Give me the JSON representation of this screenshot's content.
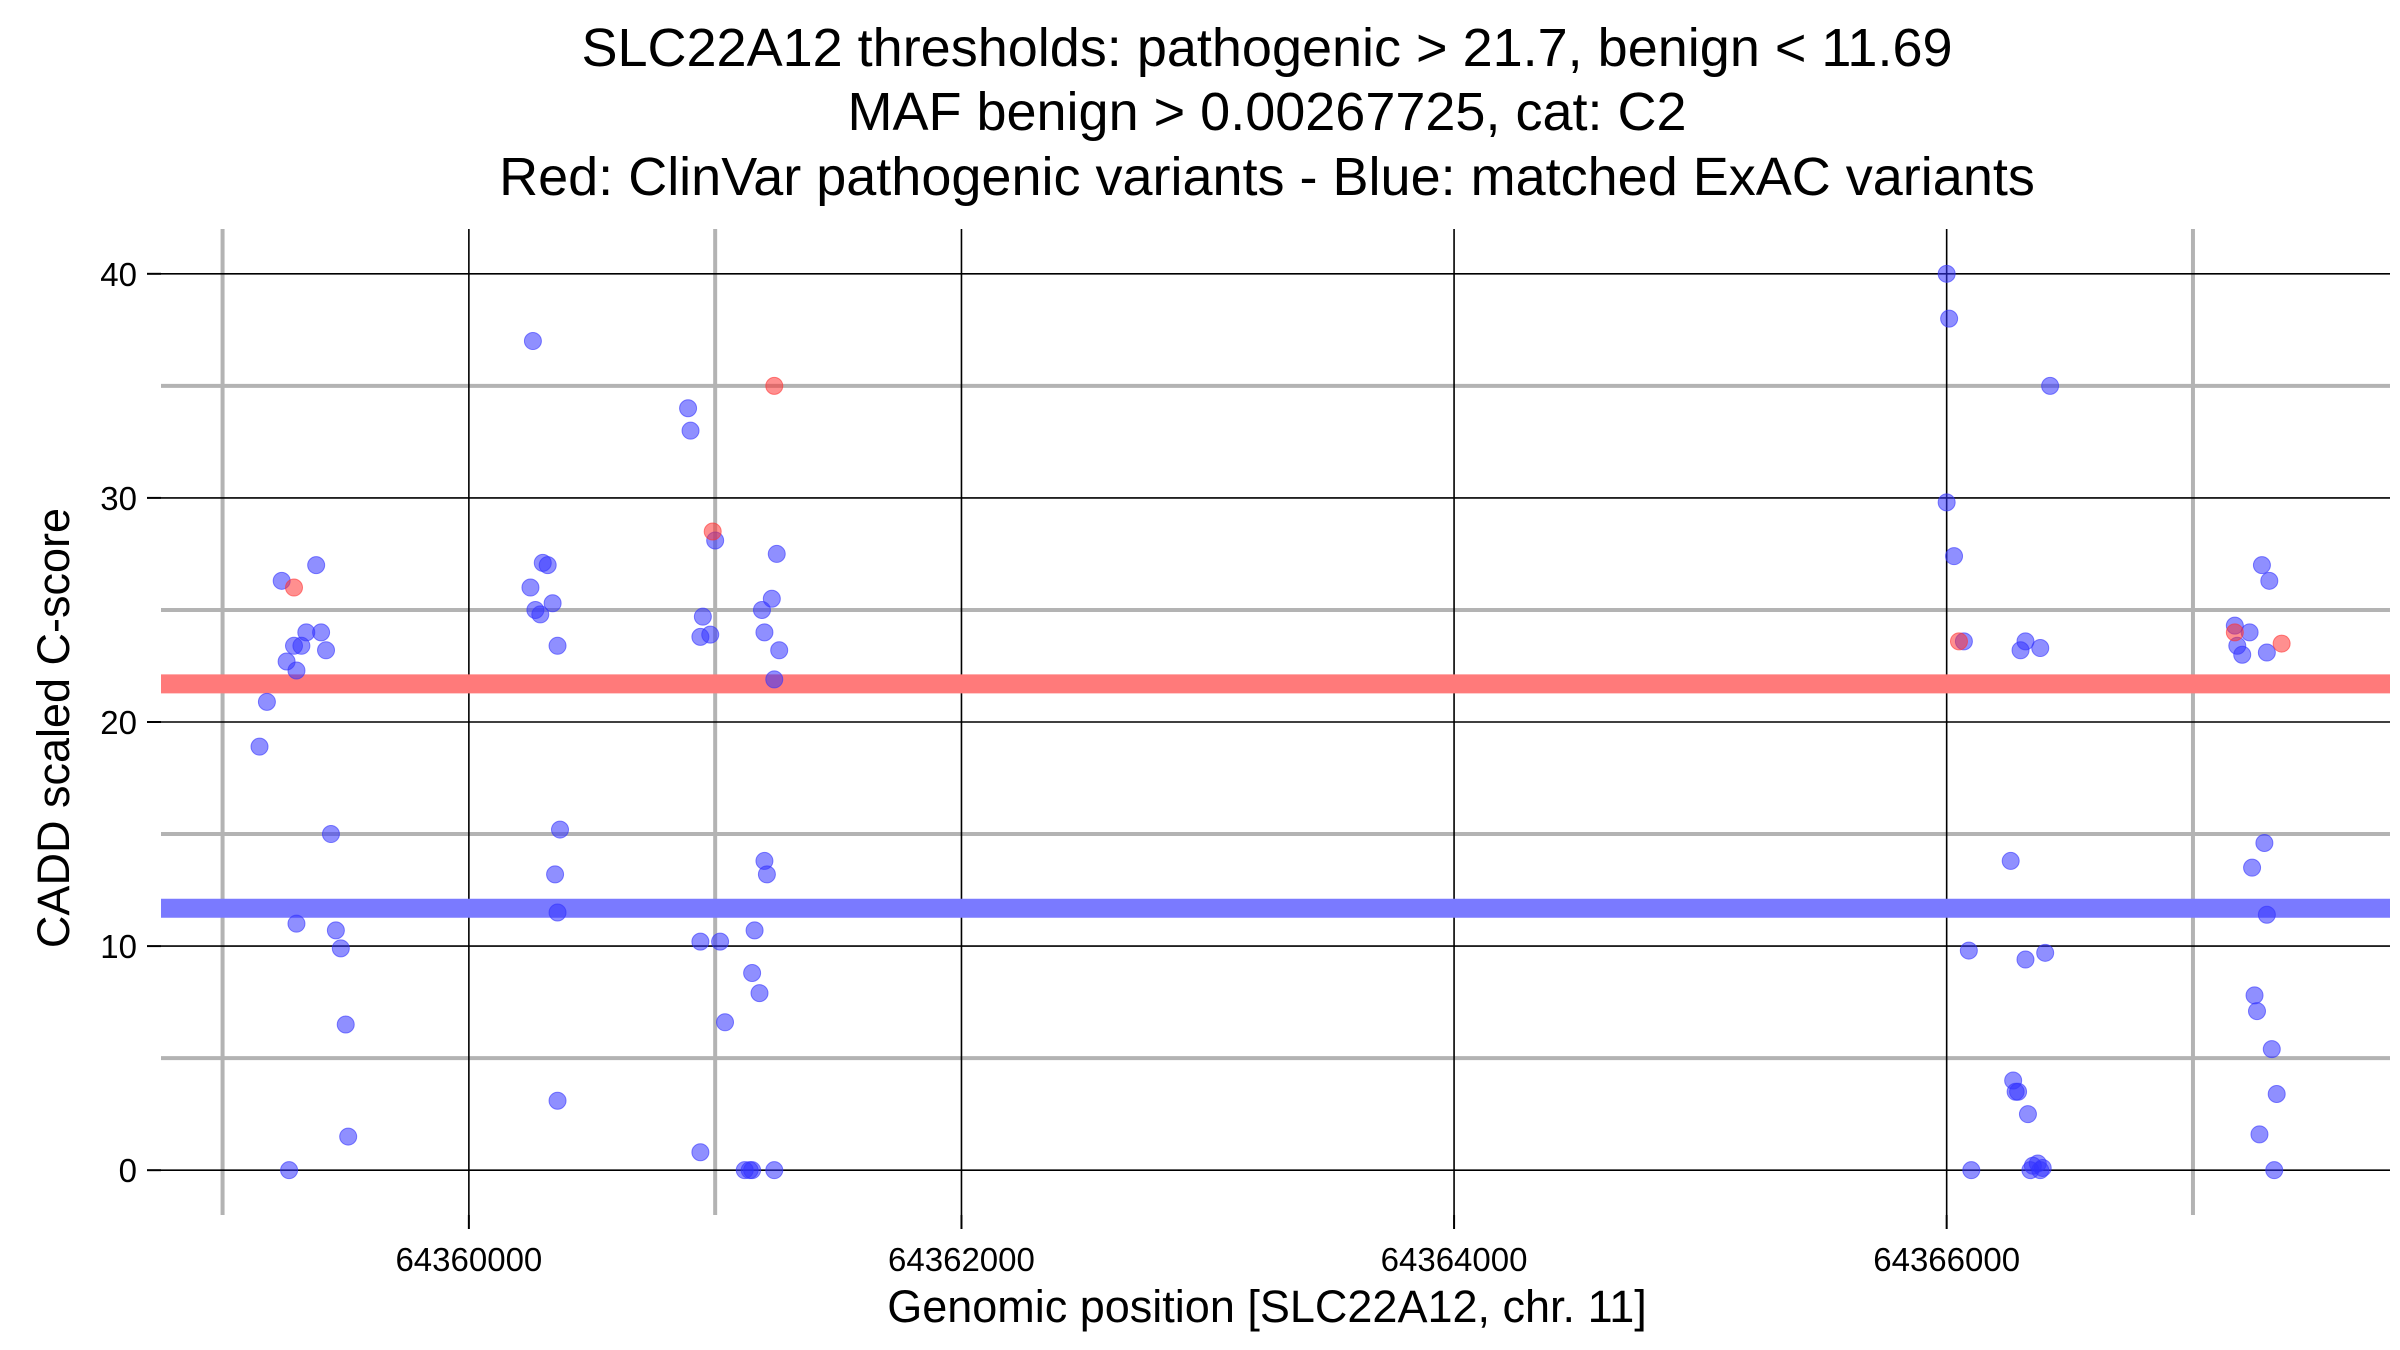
{
  "chart_data": {
    "type": "scatter",
    "title_lines": [
      "SLC22A12 thresholds: pathogenic > 21.7, benign < 11.69",
      "MAF benign > 0.00267725, cat: C2",
      "Red: ClinVar pathogenic variants - Blue: matched ExAC variants"
    ],
    "xlabel": "Genomic position [SLC22A12, chr. 11]",
    "ylabel": "CADD scaled C-score",
    "xlim": [
      64358750,
      64367800
    ],
    "ylim": [
      -2,
      42
    ],
    "x_ticks": [
      64360000,
      64362000,
      64364000,
      64366000
    ],
    "x_tick_labels": [
      "64360000",
      "64362000",
      "64364000",
      "64366000"
    ],
    "x_minor_gridlines": [
      64359000,
      64361000,
      64367000
    ],
    "y_ticks": [
      0,
      10,
      20,
      30,
      40
    ],
    "y_tick_labels": [
      "0",
      "10",
      "20",
      "30",
      "40"
    ],
    "y_minor_gridlines": [
      5,
      15,
      25,
      35
    ],
    "thresholds": {
      "pathogenic": 21.7,
      "benign": 11.69,
      "maf_benign": 0.00267725,
      "category": "C2"
    },
    "colors": {
      "pathogenic_line": "#ff7a7a",
      "benign_line": "#7a7aff",
      "pathogenic_point": "#ff3333",
      "benign_point": "#3333ff",
      "major_grid": "#000000",
      "minor_grid": "#b3b3b3"
    },
    "series": [
      {
        "color": "#ff3333",
        "x": [
          64359290,
          64360990,
          64361240,
          64366050,
          64367170,
          64367360
        ],
        "y": [
          26,
          28.5,
          35,
          23.6,
          24,
          23.5
        ]
      },
      {
        "color": "#3333ff",
        "x": [
          64359150,
          64359180,
          64359240,
          64359260,
          64359290,
          64359300,
          64359320,
          64359340,
          64359380,
          64359400,
          64359420,
          64359440,
          64359460,
          64359480,
          64359500,
          64359510,
          64359270,
          64359300,
          64360260,
          64360250,
          64360270,
          64360290,
          64360300,
          64360320,
          64360340,
          64360360,
          64360370,
          64360350,
          64360360,
          64360360,
          64360890,
          64360900,
          64360940,
          64360950,
          64360980,
          64361000,
          64360940,
          64361020,
          64361040,
          64361150,
          64361180,
          64361200,
          64361210,
          64361230,
          64361250,
          64361260,
          64360940,
          64361120,
          64361140,
          64361150,
          64361160,
          64361190,
          64361200,
          64361240,
          64361240,
          64366000,
          64366010,
          64366000,
          64366030,
          64366070,
          64366420,
          64366320,
          64366380,
          64366400,
          64366260,
          64366270,
          64366280,
          64366290,
          64366300,
          64366320,
          64366330,
          64366340,
          64366350,
          64366370,
          64366380,
          64366390,
          64366100,
          64366090,
          64367170,
          64367180,
          64367200,
          64367230,
          64367280,
          64367310,
          64367300,
          64367240,
          64367250,
          64367260,
          64367270,
          64367290,
          64367300,
          64367320,
          64367340,
          64367330
        ],
        "y": [
          18.9,
          20.9,
          26.3,
          22.7,
          23.4,
          22.3,
          23.4,
          24,
          27,
          24,
          23.2,
          15,
          10.7,
          9.9,
          6.5,
          1.5,
          0,
          11,
          37,
          26,
          25,
          24.8,
          27.1,
          27,
          25.3,
          23.4,
          15.2,
          13.2,
          11.5,
          3.1,
          34,
          33,
          23.8,
          24.7,
          23.9,
          28.1,
          10.2,
          10.2,
          6.6,
          8.8,
          7.9,
          13.8,
          13.2,
          25.5,
          27.5,
          23.2,
          0.8,
          0,
          0,
          0,
          10.7,
          25,
          24,
          21.9,
          0,
          40,
          38,
          29.8,
          27.4,
          23.6,
          35,
          23.6,
          23.3,
          9.7,
          13.8,
          4,
          3.5,
          3.5,
          23.2,
          9.4,
          2.5,
          0,
          0.2,
          0.3,
          0,
          0.1,
          0,
          9.8,
          24.3,
          23.4,
          23,
          24,
          27,
          26.3,
          23.1,
          13.5,
          7.8,
          7.1,
          1.6,
          14.6,
          11.4,
          5.4,
          3.4,
          0
        ]
      }
    ]
  }
}
